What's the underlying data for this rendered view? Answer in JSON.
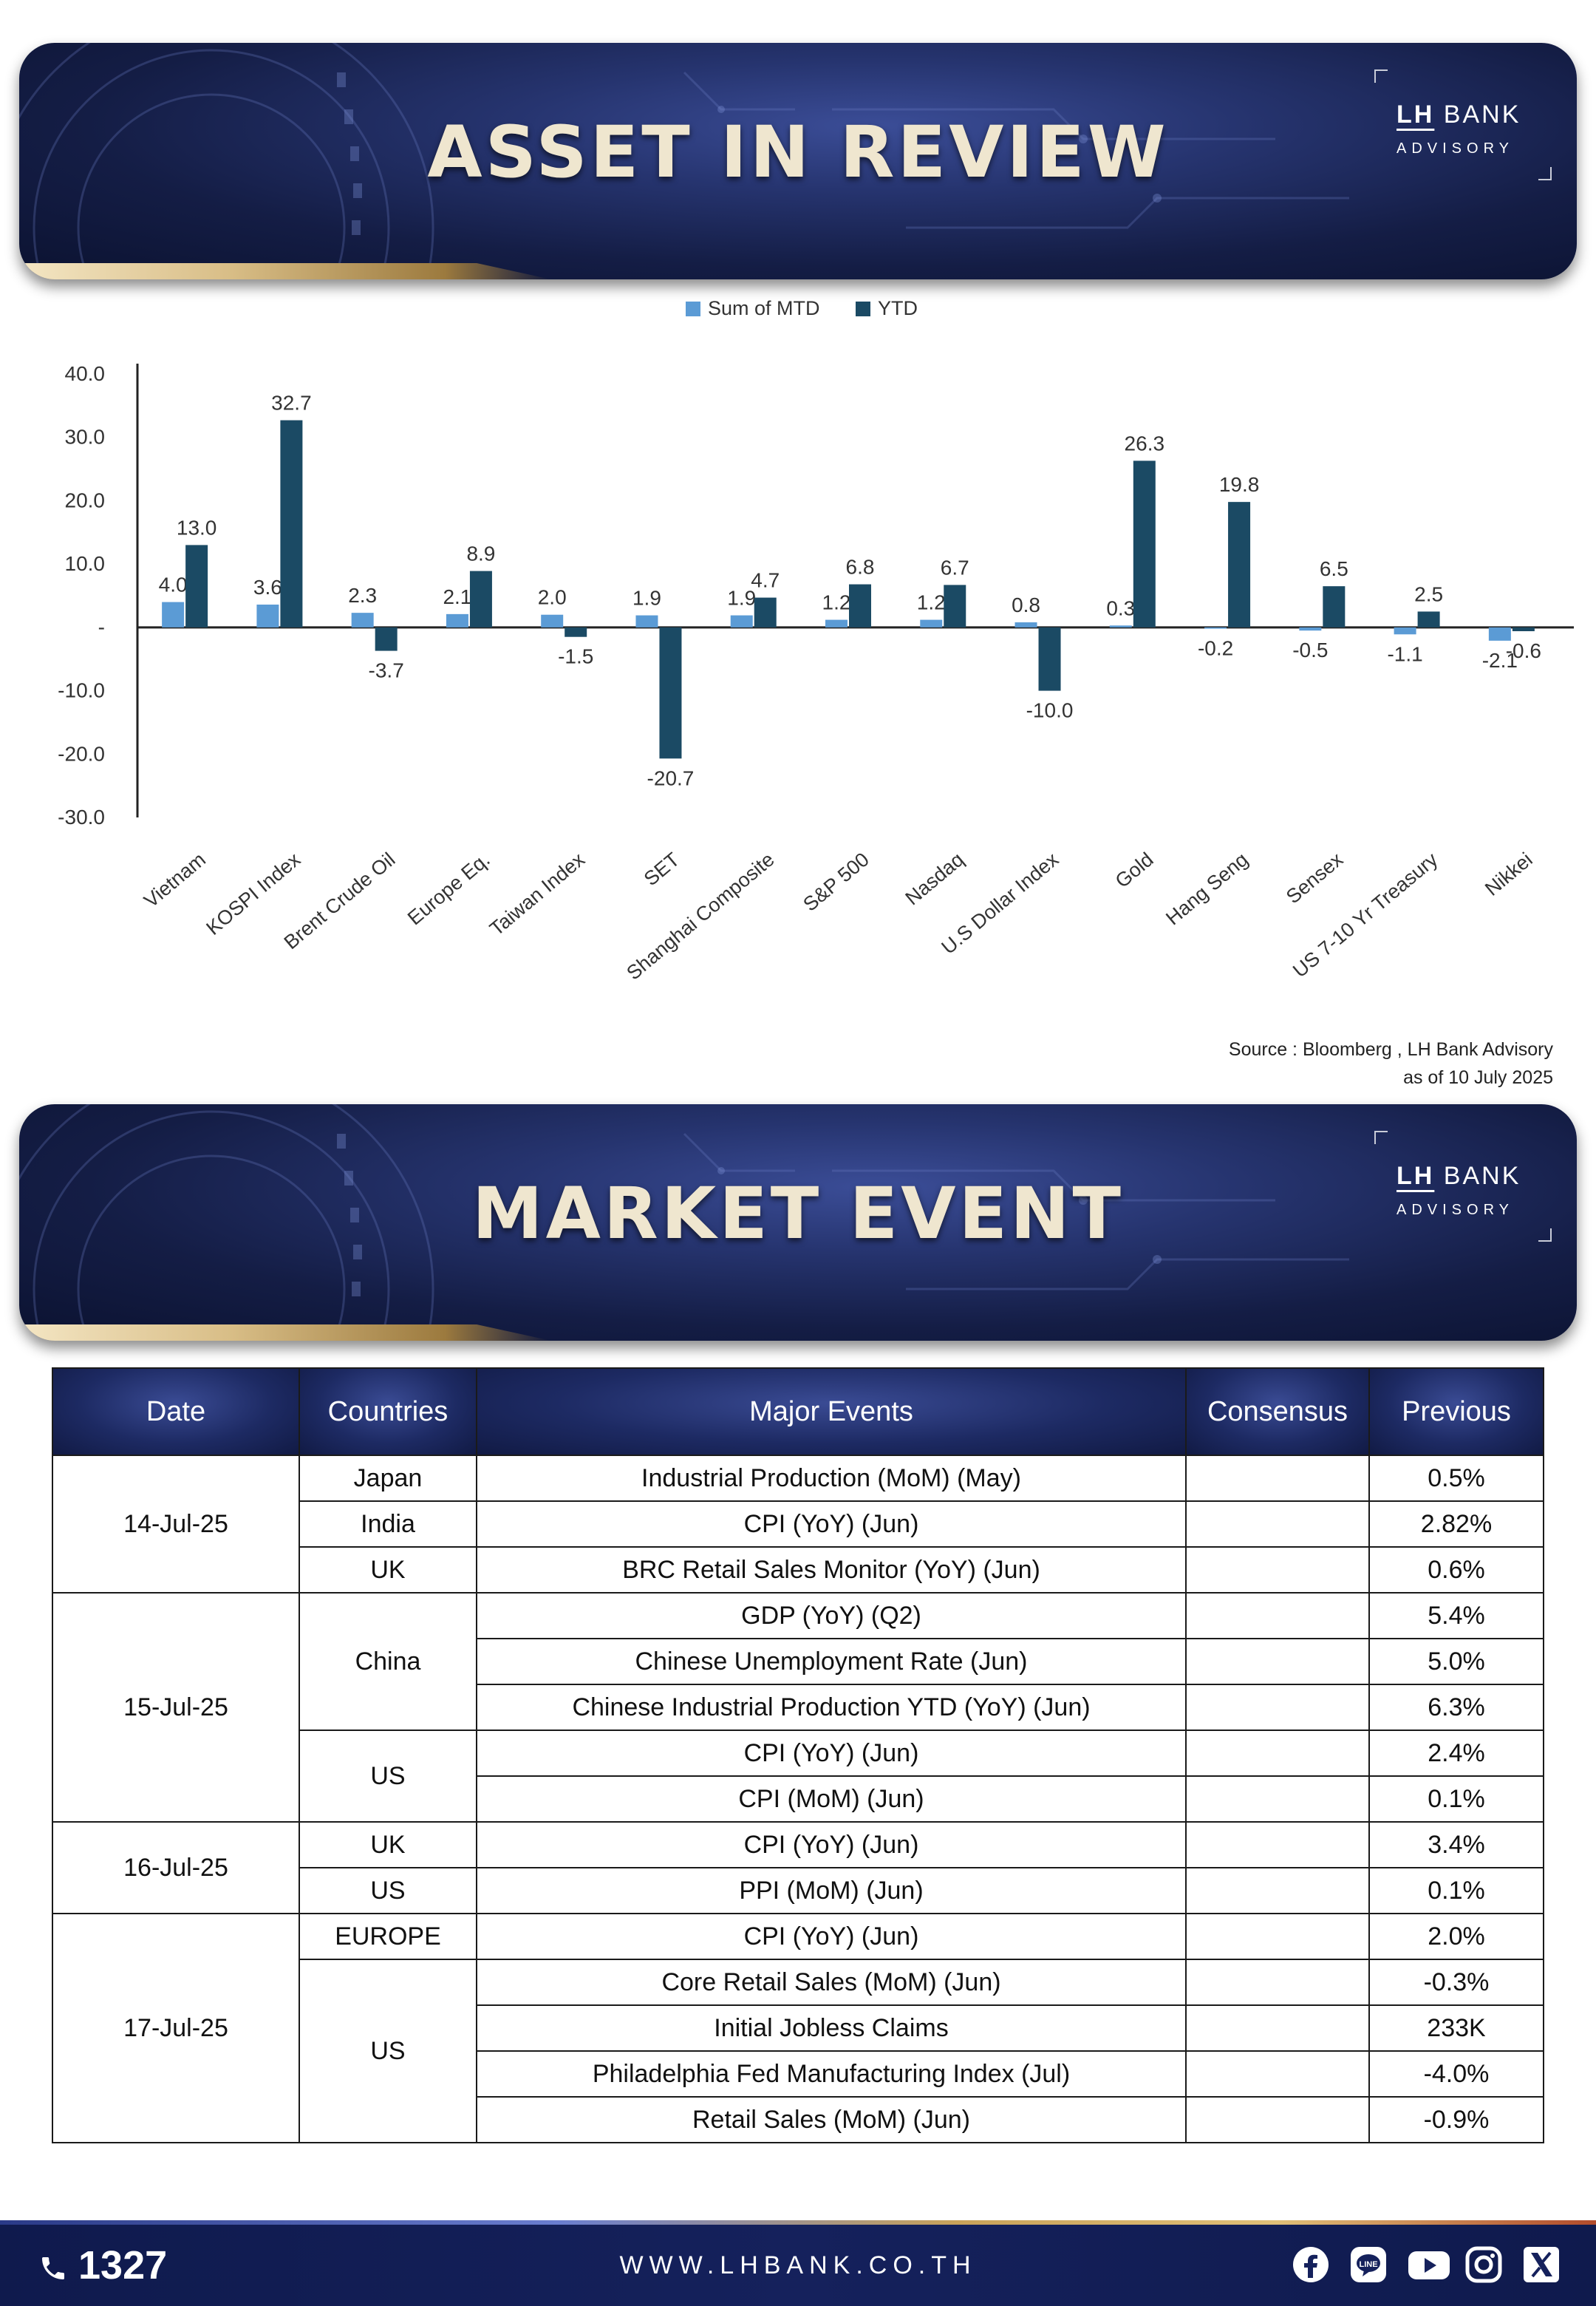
{
  "banner1": {
    "title": "ASSET IN REVIEW"
  },
  "banner2": {
    "title": "MARKET EVENT"
  },
  "logo": {
    "brand_prefix": "LH",
    "brand_word": "BANK",
    "subtitle": "ADVISORY"
  },
  "chart_data": {
    "type": "bar",
    "categories": [
      "Vietnam",
      "KOSPI Index",
      "Brent Crude Oil",
      "Europe Eq.",
      "Taiwan Index",
      "SET",
      "Shanghai Composite",
      "S&P 500",
      "Nasdaq",
      "U.S Dollar Index",
      "Gold",
      "Hang Seng",
      "Sensex",
      "US 7-10 Yr Treasury",
      "Nikkei"
    ],
    "series": [
      {
        "name": "Sum of MTD",
        "color": "#5b9bd5",
        "values": [
          4.0,
          3.6,
          2.3,
          2.1,
          2.0,
          1.9,
          1.9,
          1.2,
          1.2,
          0.8,
          0.3,
          -0.2,
          -0.5,
          -1.1,
          -2.1
        ]
      },
      {
        "name": "YTD",
        "color": "#1b4a64",
        "values": [
          13.0,
          32.7,
          -3.7,
          8.9,
          -1.5,
          -20.7,
          4.7,
          6.8,
          6.7,
          -10.0,
          26.3,
          19.8,
          6.5,
          2.5,
          -0.6
        ]
      }
    ],
    "ylim": [
      -30,
      40
    ],
    "yticks": [
      "40.0",
      "30.0",
      "20.0",
      "10.0",
      "-",
      "-10.0",
      "-20.0",
      "-30.0"
    ],
    "legend_position": "top-center",
    "grid": false
  },
  "source": {
    "line1": "Source : Bloomberg , LH Bank Advisory",
    "line2": "as of 10 July 2025"
  },
  "table": {
    "headers": {
      "date": "Date",
      "countries": "Countries",
      "events": "Major Events",
      "consensus": "Consensus",
      "previous": "Previous"
    },
    "groups": [
      {
        "date": "14-Jul-25",
        "countries": [
          {
            "name": "Japan",
            "events": [
              {
                "event": "Industrial Production (MoM) (May)",
                "consensus": "",
                "previous": "0.5%"
              }
            ]
          },
          {
            "name": "India",
            "events": [
              {
                "event": "CPI (YoY) (Jun)",
                "consensus": "",
                "previous": "2.82%"
              }
            ]
          },
          {
            "name": "UK",
            "events": [
              {
                "event": "BRC Retail Sales Monitor (YoY) (Jun)",
                "consensus": "",
                "previous": "0.6%"
              }
            ]
          }
        ]
      },
      {
        "date": "15-Jul-25",
        "countries": [
          {
            "name": "China",
            "events": [
              {
                "event": "GDP (YoY) (Q2)",
                "consensus": "",
                "previous": "5.4%"
              },
              {
                "event": "Chinese Unemployment Rate (Jun)",
                "consensus": "",
                "previous": "5.0%"
              },
              {
                "event": "Chinese Industrial Production YTD (YoY) (Jun)",
                "consensus": "",
                "previous": "6.3%"
              }
            ]
          },
          {
            "name": "US",
            "events": [
              {
                "event": "CPI (YoY) (Jun)",
                "consensus": "",
                "previous": "2.4%"
              },
              {
                "event": "CPI (MoM) (Jun)",
                "consensus": "",
                "previous": "0.1%"
              }
            ]
          }
        ]
      },
      {
        "date": "16-Jul-25",
        "countries": [
          {
            "name": "UK",
            "events": [
              {
                "event": "CPI (YoY) (Jun)",
                "consensus": "",
                "previous": "3.4%"
              }
            ]
          },
          {
            "name": "US",
            "events": [
              {
                "event": "PPI (MoM) (Jun)",
                "consensus": "",
                "previous": "0.1%"
              }
            ]
          }
        ]
      },
      {
        "date": "17-Jul-25",
        "countries": [
          {
            "name": "EUROPE",
            "events": [
              {
                "event": "CPI (YoY) (Jun)",
                "consensus": "",
                "previous": "2.0%"
              }
            ]
          },
          {
            "name": "US",
            "events": [
              {
                "event": "Core Retail Sales (MoM) (Jun)",
                "consensus": "",
                "previous": "-0.3%"
              },
              {
                "event": "Initial Jobless Claims",
                "consensus": "",
                "previous": "233K"
              },
              {
                "event": "Philadelphia Fed Manufacturing Index (Jul)",
                "consensus": "",
                "previous": "-4.0%"
              },
              {
                "event": "Retail Sales (MoM) (Jun)",
                "consensus": "",
                "previous": "-0.9%"
              }
            ]
          }
        ]
      }
    ]
  },
  "footer": {
    "phone": "1327",
    "website": "WWW.LHBANK.CO.TH",
    "social_icons": [
      "facebook-icon",
      "line-icon",
      "youtube-icon",
      "instagram-icon",
      "x-icon"
    ]
  }
}
